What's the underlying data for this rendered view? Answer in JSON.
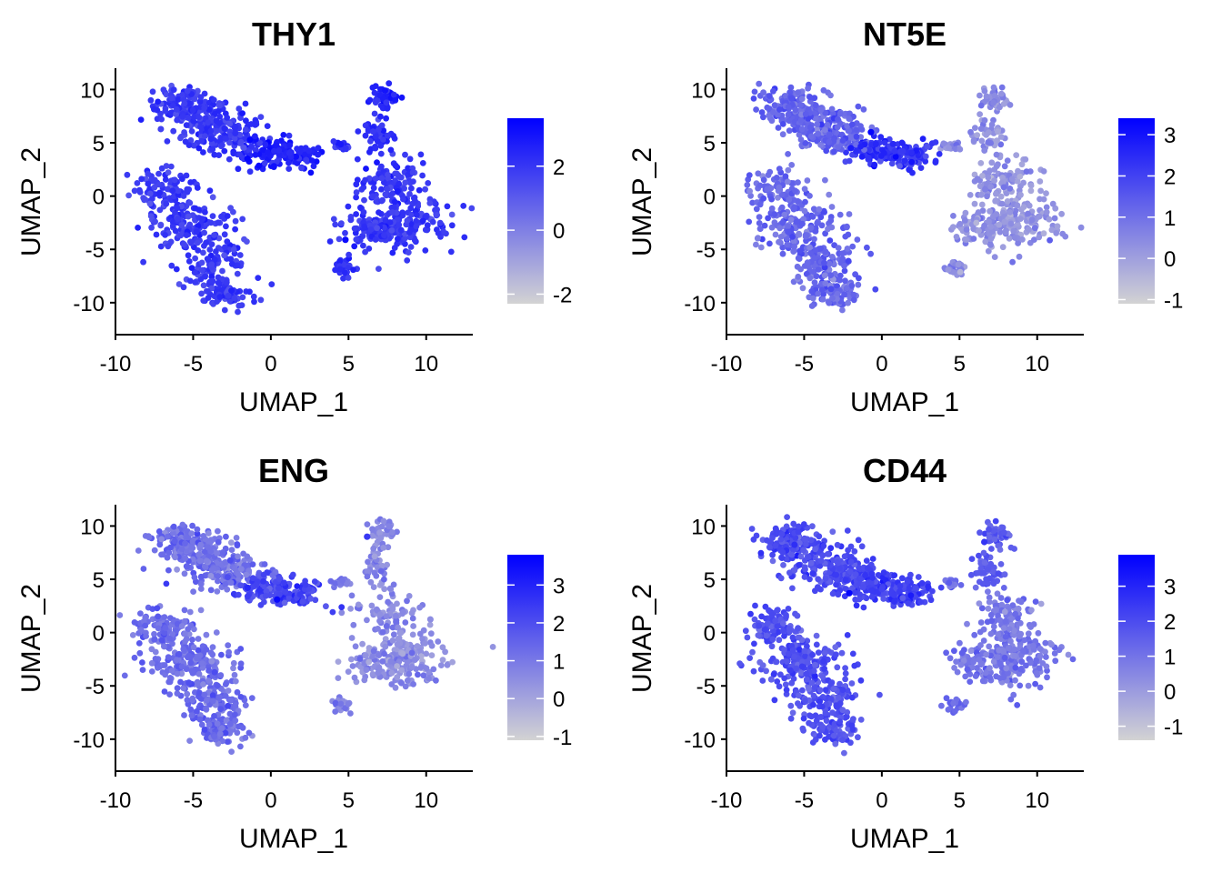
{
  "chart_data": [
    {
      "type": "scatter",
      "title": "THY1",
      "xlabel": "UMAP_1",
      "ylabel": "UMAP_2",
      "xlim": [
        -10,
        13
      ],
      "ylim": [
        -13,
        12
      ],
      "x_ticks": [
        "-10",
        "-5",
        "0",
        "5",
        "10"
      ],
      "y_ticks": [
        "-10",
        "-5",
        "0",
        "5",
        "10"
      ],
      "colorbar": {
        "min": -2.3,
        "max": 3.5,
        "ticks": [
          "-2",
          "0",
          "2"
        ],
        "low_color": "#d3d3d3",
        "high_color": "#0000ff"
      },
      "expression": {
        "left_arm": 2.0,
        "bridge": 2.6,
        "left_body": 1.9,
        "right_top": 2.4,
        "right_body": 2.0,
        "islands": 2.2
      },
      "highlights": [
        {
          "x": -1.5,
          "y": 3.5,
          "value": 3.3
        },
        {
          "x": 0.2,
          "y": 2.8,
          "value": 3.1
        },
        {
          "x": 4.8,
          "y": -4.1,
          "value": 3.2
        }
      ],
      "grid": false,
      "legend": "right"
    },
    {
      "type": "scatter",
      "title": "NT5E",
      "xlabel": "UMAP_1",
      "ylabel": "UMAP_2",
      "xlim": [
        -10,
        13
      ],
      "ylim": [
        -13,
        12
      ],
      "x_ticks": [
        "-10",
        "-5",
        "0",
        "5",
        "10"
      ],
      "y_ticks": [
        "-10",
        "-5",
        "0",
        "5",
        "10"
      ],
      "colorbar": {
        "min": -1.1,
        "max": 3.4,
        "ticks": [
          "-1",
          "0",
          "1",
          "2",
          "3"
        ],
        "low_color": "#d3d3d3",
        "high_color": "#0000ff"
      },
      "expression": {
        "left_arm": 1.3,
        "bridge": 2.3,
        "left_body": 1.2,
        "right_top": 0.4,
        "right_body": 0.3,
        "islands": 0.5
      },
      "highlights": [
        {
          "x": -0.7,
          "y": 6.0,
          "value": 3.3
        },
        {
          "x": -2.0,
          "y": 4.5,
          "value": 2.8
        }
      ],
      "grid": false,
      "legend": "right"
    },
    {
      "type": "scatter",
      "title": "ENG",
      "xlabel": "UMAP_1",
      "ylabel": "UMAP_2",
      "xlim": [
        -10,
        13
      ],
      "ylim": [
        -13,
        12
      ],
      "x_ticks": [
        "-10",
        "-5",
        "0",
        "5",
        "10"
      ],
      "y_ticks": [
        "-10",
        "-5",
        "0",
        "5",
        "10"
      ],
      "colorbar": {
        "min": -1.1,
        "max": 3.8,
        "ticks": [
          "-1",
          "0",
          "1",
          "2",
          "3"
        ],
        "low_color": "#d3d3d3",
        "high_color": "#0000ff"
      },
      "expression": {
        "left_arm": 1.2,
        "bridge": 2.2,
        "left_body": 1.3,
        "right_top": 0.7,
        "right_body": 0.6,
        "islands": 0.8
      },
      "highlights": [
        {
          "x": 0.4,
          "y": 3.1,
          "value": 3.6
        },
        {
          "x": -1.5,
          "y": 4.2,
          "value": 2.9
        },
        {
          "x": 6.2,
          "y": 9.0,
          "value": 2.5
        }
      ],
      "grid": false,
      "legend": "right"
    },
    {
      "type": "scatter",
      "title": "CD44",
      "xlabel": "UMAP_1",
      "ylabel": "UMAP_2",
      "xlim": [
        -10,
        13
      ],
      "ylim": [
        -13,
        12
      ],
      "x_ticks": [
        "-10",
        "-5",
        "0",
        "5",
        "10"
      ],
      "y_ticks": [
        "-10",
        "-5",
        "0",
        "5",
        "10"
      ],
      "colorbar": {
        "min": -1.4,
        "max": 3.9,
        "ticks": [
          "-1",
          "0",
          "1",
          "2",
          "3"
        ],
        "low_color": "#d3d3d3",
        "high_color": "#0000ff"
      },
      "expression": {
        "left_arm": 2.0,
        "bridge": 2.3,
        "left_body": 1.9,
        "right_top": 1.6,
        "right_body": 0.9,
        "islands": 1.2
      },
      "highlights": [
        {
          "x": -2.1,
          "y": 3.7,
          "value": 3.8
        },
        {
          "x": 6.6,
          "y": 8.5,
          "value": 2.6
        }
      ],
      "grid": false,
      "legend": "right"
    }
  ]
}
